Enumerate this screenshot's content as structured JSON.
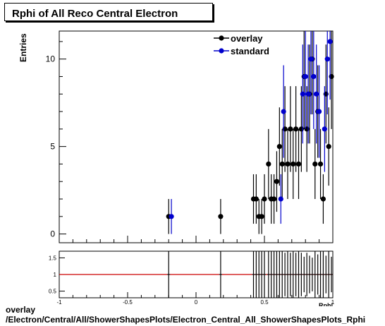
{
  "title": "Rphi of All Reco Central Electron",
  "caption": {
    "line1": "overlay",
    "line2": "/Electron/Central/All/ShowerShapesPlots/Electron_Central_All_ShowerShapesPlots_Rphi"
  },
  "colors": {
    "overlay": "#000000",
    "standard": "#0000cc",
    "ratio_line": "#cc0000"
  },
  "chart_data": [
    {
      "type": "scatter",
      "title": "Rphi of All Reco Central Electron",
      "xlabel": "Rphi",
      "ylabel": "Entries",
      "xlim": [
        -1,
        1
      ],
      "ylim": [
        -0.5,
        11.6
      ],
      "yticks": [
        0,
        5,
        10
      ],
      "legend_position": "top-right",
      "series": [
        {
          "name": "overlay",
          "x": [
            -0.2,
            0.18,
            0.42,
            0.44,
            0.46,
            0.48,
            0.5,
            0.53,
            0.55,
            0.57,
            0.59,
            0.61,
            0.63,
            0.65,
            0.67,
            0.69,
            0.71,
            0.73,
            0.75,
            0.77,
            0.79,
            0.81,
            0.83,
            0.85,
            0.87,
            0.89,
            0.91,
            0.93,
            0.95,
            0.97,
            0.99
          ],
          "y": [
            1,
            1,
            2,
            2,
            1,
            1,
            2,
            4,
            2,
            2,
            3,
            5,
            4,
            6,
            4,
            6,
            4,
            6,
            4,
            6,
            9,
            6,
            8,
            10,
            4,
            7,
            4,
            2,
            8,
            5,
            9
          ]
        },
        {
          "name": "standard",
          "x": [
            -0.18,
            0.62,
            0.64,
            0.78,
            0.8,
            0.82,
            0.84,
            0.86,
            0.88,
            0.9,
            0.94,
            0.96,
            0.98
          ],
          "y": [
            1,
            2,
            7,
            8,
            9,
            8,
            10,
            9,
            8,
            7,
            6,
            10,
            11
          ]
        }
      ]
    },
    {
      "type": "scatter",
      "xlabel": "Rphi",
      "xlim": [
        -1,
        1
      ],
      "ylim": [
        0.3,
        1.7
      ],
      "xticks": [
        -1,
        -0.5,
        0,
        0.5,
        1
      ],
      "xtick_labels": [
        "-1",
        "-0.5",
        "0",
        "0.5",
        "1"
      ],
      "yticks": [
        0.5,
        1,
        1.5
      ],
      "ytick_labels": [
        "0.5",
        "1",
        "1.5"
      ],
      "reference_line": 1
    }
  ]
}
